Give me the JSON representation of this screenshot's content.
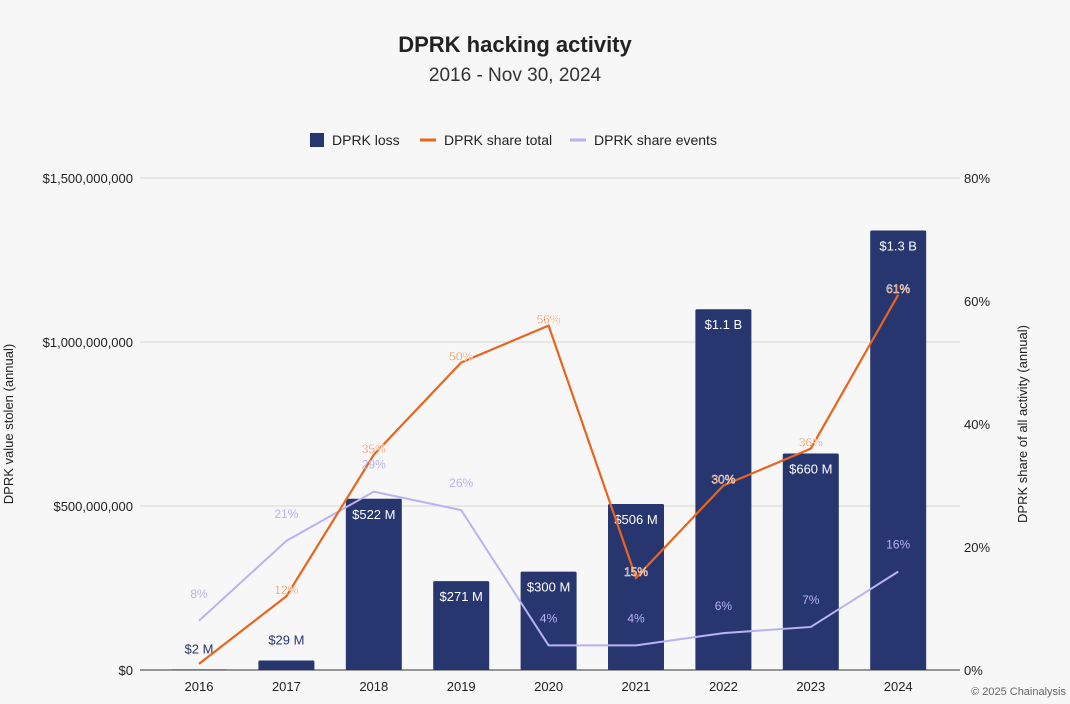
{
  "chart_data": {
    "type": "bar",
    "title": "DPRK hacking activity",
    "subtitle": "2016 - Nov 30, 2024",
    "categories": [
      "2016",
      "2017",
      "2018",
      "2019",
      "2020",
      "2021",
      "2022",
      "2023",
      "2024"
    ],
    "series": [
      {
        "name": "DPRK loss",
        "type": "bar",
        "axis": "left",
        "unit": "USD millions",
        "values": [
          2,
          29,
          522,
          271,
          300,
          506,
          1100,
          660,
          1340
        ],
        "labels": [
          "$2  M",
          "$29  M",
          "$522  M",
          "$271  M",
          "$300  M",
          "$506  M",
          "$1.1 B",
          "$660  M",
          "$1.3 B"
        ],
        "color": "#27366f"
      },
      {
        "name": "DPRK share total",
        "type": "line",
        "axis": "right",
        "unit": "%",
        "values": [
          1,
          12,
          35,
          50,
          56,
          15,
          30,
          36,
          61
        ],
        "labels": [
          "",
          "12%",
          "35%",
          "50%",
          "56%",
          "15%",
          "30%",
          "36%",
          "61%"
        ],
        "color": "#e8651e"
      },
      {
        "name": "DPRK share events",
        "type": "line",
        "axis": "right",
        "unit": "%",
        "values": [
          8,
          21,
          29,
          26,
          4,
          4,
          6,
          7,
          16
        ],
        "labels": [
          "8%",
          "21%",
          "29%",
          "26%",
          "4%",
          "4%",
          "6%",
          "7%",
          "16%"
        ],
        "color": "#b9b3f0"
      }
    ],
    "ylabel_left": "DPRK value stolen (annual)",
    "ylabel_right": "DPRK share of all activity (annual)",
    "ylim_left": [
      0,
      1500000000
    ],
    "ylim_right": [
      0,
      80
    ],
    "yticks_left": [
      "$0",
      "$500,000,000",
      "$1,000,000,000",
      "$1,500,000,000"
    ],
    "yticks_right": [
      "0%",
      "20%",
      "40%",
      "60%",
      "80%"
    ],
    "grid": true,
    "legend": "top"
  },
  "footer": "© 2025 Chainalysis"
}
